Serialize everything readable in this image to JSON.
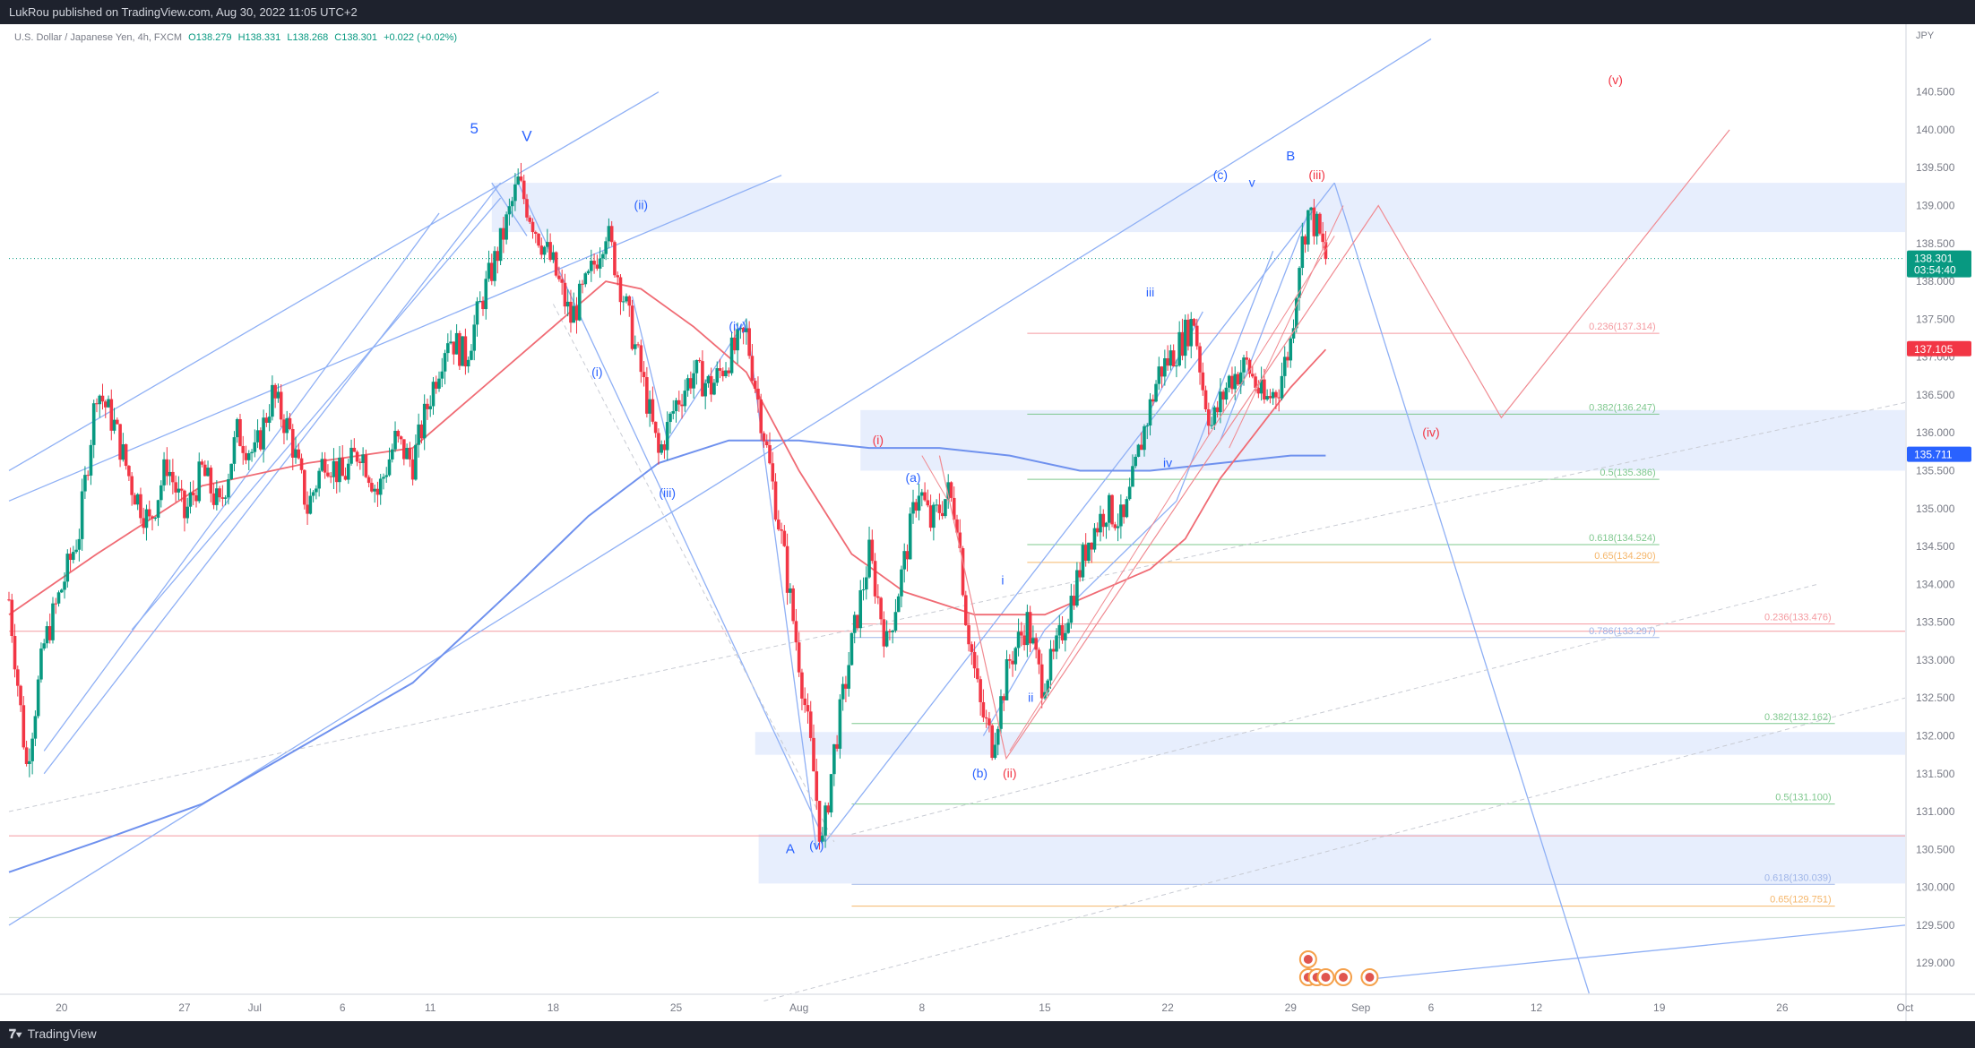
{
  "header": {
    "published": "LukRou published on TradingView.com, Aug 30, 2022 11:05 UTC+2"
  },
  "footer": {
    "brand": "TradingView",
    "brand_icon": "tradingview-logo-icon"
  },
  "colors": {
    "up": "#089981",
    "down": "#f23645",
    "blue": "#2962ff",
    "zone": "#e3ebfd",
    "ma_red": "#f06b74",
    "ma_blue": "#6f91ee",
    "channel": "#8fb0f5",
    "fib_red": "#f49aa0",
    "fib_green": "#7fc88e",
    "fib_orange": "#f5b66a"
  },
  "chart_data": {
    "type": "candlestick",
    "legend": {
      "symbol": "U.S. Dollar / Japanese Yen, 4h, FXCM",
      "open": "O138.279",
      "high": "H138.331",
      "low": "L138.268",
      "close": "C138.301",
      "change": "+0.022 (+0.02%)"
    },
    "price_axis": {
      "currency": "JPY",
      "range": [
        128.6,
        141.3
      ],
      "ticks": [
        "140.500",
        "140.000",
        "139.500",
        "139.000",
        "138.500",
        "138.000",
        "137.500",
        "137.000",
        "136.500",
        "136.000",
        "135.500",
        "135.000",
        "134.500",
        "134.000",
        "133.500",
        "133.000",
        "132.500",
        "132.000",
        "131.500",
        "131.000",
        "130.500",
        "130.000",
        "129.500",
        "129.000"
      ]
    },
    "time_axis": {
      "ticks": [
        {
          "label": "20",
          "d": 0
        },
        {
          "label": "27",
          "d": 7
        },
        {
          "label": "Jul",
          "d": 11
        },
        {
          "label": "6",
          "d": 16
        },
        {
          "label": "11",
          "d": 21
        },
        {
          "label": "18",
          "d": 28
        },
        {
          "label": "25",
          "d": 35
        },
        {
          "label": "Aug",
          "d": 42
        },
        {
          "label": "8",
          "d": 49
        },
        {
          "label": "15",
          "d": 56
        },
        {
          "label": "22",
          "d": 63
        },
        {
          "label": "29",
          "d": 70
        },
        {
          "label": "Sep",
          "d": 74
        },
        {
          "label": "6",
          "d": 78
        },
        {
          "label": "12",
          "d": 84
        },
        {
          "label": "19",
          "d": 91
        },
        {
          "label": "26",
          "d": 98
        },
        {
          "label": "Oct",
          "d": 105
        }
      ]
    },
    "price_badges": [
      {
        "label": "138.301",
        "sub": "03:54:40",
        "value": 138.301,
        "color": "#089981"
      },
      {
        "label": "137.105",
        "value": 137.105,
        "color": "#f23645"
      },
      {
        "label": "135.711",
        "value": 135.711,
        "color": "#2962ff"
      }
    ],
    "ohlc_path": [
      {
        "d": -3,
        "p": 133.8
      },
      {
        "d": -2,
        "p": 131.6
      },
      {
        "d": -1,
        "p": 133.2
      },
      {
        "d": 1,
        "p": 134.7
      },
      {
        "d": 2,
        "p": 136.6
      },
      {
        "d": 3,
        "p": 136.1
      },
      {
        "d": 4,
        "p": 135.3
      },
      {
        "d": 5,
        "p": 134.8
      },
      {
        "d": 6,
        "p": 135.6
      },
      {
        "d": 7,
        "p": 134.9
      },
      {
        "d": 8,
        "p": 135.5
      },
      {
        "d": 9,
        "p": 135.0
      },
      {
        "d": 10,
        "p": 136.0
      },
      {
        "d": 11,
        "p": 135.7
      },
      {
        "d": 12,
        "p": 136.5
      },
      {
        "d": 13,
        "p": 136.0
      },
      {
        "d": 14,
        "p": 135.0
      },
      {
        "d": 15,
        "p": 135.7
      },
      {
        "d": 16,
        "p": 135.4
      },
      {
        "d": 17,
        "p": 135.8
      },
      {
        "d": 18,
        "p": 135.2
      },
      {
        "d": 19,
        "p": 135.9
      },
      {
        "d": 20,
        "p": 135.6
      },
      {
        "d": 21,
        "p": 136.5
      },
      {
        "d": 22,
        "p": 137.3
      },
      {
        "d": 23,
        "p": 137.0
      },
      {
        "d": 24,
        "p": 137.8
      },
      {
        "d": 25,
        "p": 138.5
      },
      {
        "d": 26,
        "p": 139.3
      },
      {
        "d": 27,
        "p": 138.7
      },
      {
        "d": 28,
        "p": 138.2
      },
      {
        "d": 29,
        "p": 137.5
      },
      {
        "d": 30,
        "p": 138.0
      },
      {
        "d": 31,
        "p": 138.7
      },
      {
        "d": 32,
        "p": 137.8
      },
      {
        "d": 33,
        "p": 136.8
      },
      {
        "d": 34,
        "p": 135.7
      },
      {
        "d": 35,
        "p": 136.4
      },
      {
        "d": 36,
        "p": 136.8
      },
      {
        "d": 37,
        "p": 136.6
      },
      {
        "d": 38,
        "p": 137.0
      },
      {
        "d": 39,
        "p": 137.3
      },
      {
        "d": 40,
        "p": 136.0
      },
      {
        "d": 41,
        "p": 134.6
      },
      {
        "d": 42,
        "p": 133.0
      },
      {
        "d": 42.8,
        "p": 131.6
      },
      {
        "d": 43.3,
        "p": 130.5
      },
      {
        "d": 44,
        "p": 131.8
      },
      {
        "d": 45,
        "p": 133.2
      },
      {
        "d": 46,
        "p": 134.4
      },
      {
        "d": 47,
        "p": 133.2
      },
      {
        "d": 48,
        "p": 134.3
      },
      {
        "d": 48.8,
        "p": 135.3
      },
      {
        "d": 49.5,
        "p": 134.8
      },
      {
        "d": 50.5,
        "p": 135.2
      },
      {
        "d": 51,
        "p": 134.9
      },
      {
        "d": 51.5,
        "p": 133.6
      },
      {
        "d": 52.3,
        "p": 132.4
      },
      {
        "d": 53,
        "p": 131.9
      },
      {
        "d": 54,
        "p": 133.0
      },
      {
        "d": 55,
        "p": 133.5
      },
      {
        "d": 55.8,
        "p": 132.7
      },
      {
        "d": 56.5,
        "p": 133.0
      },
      {
        "d": 57.5,
        "p": 133.8
      },
      {
        "d": 58.5,
        "p": 134.6
      },
      {
        "d": 59.5,
        "p": 135.0
      },
      {
        "d": 60.5,
        "p": 134.8
      },
      {
        "d": 61.5,
        "p": 135.9
      },
      {
        "d": 62.5,
        "p": 136.8
      },
      {
        "d": 63.5,
        "p": 137.1
      },
      {
        "d": 64.5,
        "p": 137.5
      },
      {
        "d": 65,
        "p": 136.6
      },
      {
        "d": 65.5,
        "p": 136.1
      },
      {
        "d": 66.5,
        "p": 136.7
      },
      {
        "d": 67.5,
        "p": 136.9
      },
      {
        "d": 68.5,
        "p": 136.4
      },
      {
        "d": 69.3,
        "p": 136.6
      },
      {
        "d": 70,
        "p": 137.2
      },
      {
        "d": 70.5,
        "p": 138.3
      },
      {
        "d": 71,
        "p": 138.9
      },
      {
        "d": 71.5,
        "p": 138.7
      },
      {
        "d": 72,
        "p": 138.3
      }
    ],
    "ma_red": [
      {
        "d": -3,
        "p": 133.6
      },
      {
        "d": 2,
        "p": 134.4
      },
      {
        "d": 8,
        "p": 135.3
      },
      {
        "d": 14,
        "p": 135.6
      },
      {
        "d": 20,
        "p": 135.8
      },
      {
        "d": 24,
        "p": 136.6
      },
      {
        "d": 28,
        "p": 137.4
      },
      {
        "d": 31,
        "p": 138.0
      },
      {
        "d": 33,
        "p": 137.9
      },
      {
        "d": 36,
        "p": 137.4
      },
      {
        "d": 39,
        "p": 136.8
      },
      {
        "d": 42,
        "p": 135.5
      },
      {
        "d": 45,
        "p": 134.4
      },
      {
        "d": 48,
        "p": 133.9
      },
      {
        "d": 52,
        "p": 133.6
      },
      {
        "d": 56,
        "p": 133.6
      },
      {
        "d": 59,
        "p": 133.9
      },
      {
        "d": 62,
        "p": 134.2
      },
      {
        "d": 64,
        "p": 134.6
      },
      {
        "d": 66,
        "p": 135.4
      },
      {
        "d": 68,
        "p": 136.0
      },
      {
        "d": 70,
        "p": 136.6
      },
      {
        "d": 72,
        "p": 137.1
      }
    ],
    "ma_blue": [
      {
        "d": -3,
        "p": 130.2
      },
      {
        "d": 2,
        "p": 130.6
      },
      {
        "d": 8,
        "p": 131.1
      },
      {
        "d": 14,
        "p": 131.9
      },
      {
        "d": 20,
        "p": 132.7
      },
      {
        "d": 26,
        "p": 134.0
      },
      {
        "d": 30,
        "p": 134.9
      },
      {
        "d": 34,
        "p": 135.6
      },
      {
        "d": 38,
        "p": 135.9
      },
      {
        "d": 42,
        "p": 135.9
      },
      {
        "d": 46,
        "p": 135.8
      },
      {
        "d": 50,
        "p": 135.8
      },
      {
        "d": 54,
        "p": 135.7
      },
      {
        "d": 58,
        "p": 135.5
      },
      {
        "d": 62,
        "p": 135.5
      },
      {
        "d": 66,
        "p": 135.6
      },
      {
        "d": 70,
        "p": 135.7
      },
      {
        "d": 72,
        "p": 135.7
      }
    ],
    "zones": [
      {
        "d1": 24.5,
        "d2": 105,
        "top": 139.3,
        "bot": 138.65
      },
      {
        "d1": 45.5,
        "d2": 105,
        "top": 136.3,
        "bot": 135.5
      },
      {
        "d1": 39.5,
        "d2": 105,
        "top": 132.05,
        "bot": 131.75
      },
      {
        "d1": 39.7,
        "d2": 105,
        "top": 130.7,
        "bot": 130.05
      }
    ],
    "fib_levels": [
      {
        "label": "0.236(137.314)",
        "price": 137.314,
        "color": "#f49aa0",
        "d1": 55,
        "d2": 91
      },
      {
        "label": "0.382(136.247)",
        "price": 136.247,
        "color": "#7fc88e",
        "d1": 55,
        "d2": 91
      },
      {
        "label": "0.5(135.386)",
        "price": 135.386,
        "color": "#7fc88e",
        "d1": 55,
        "d2": 91
      },
      {
        "label": "0.618(134.524)",
        "price": 134.524,
        "color": "#7fc88e",
        "d1": 55,
        "d2": 91
      },
      {
        "label": "0.65(134.290)",
        "price": 134.29,
        "color": "#f5b66a",
        "d1": 55,
        "d2": 91
      },
      {
        "label": "0.786(133.297)",
        "price": 133.297,
        "color": "#9fb5e8",
        "d1": 45,
        "d2": 91
      },
      {
        "label": "0.236(133.476)",
        "price": 133.476,
        "color": "#f49aa0",
        "d1": 45,
        "d2": 101
      },
      {
        "label": "0.382(132.162)",
        "price": 132.162,
        "color": "#7fc88e",
        "d1": 45,
        "d2": 101
      },
      {
        "label": "0.5(131.100)",
        "price": 131.1,
        "color": "#7fc88e",
        "d1": 45,
        "d2": 101
      },
      {
        "label": "0.618(130.039)",
        "price": 130.039,
        "color": "#9fb5e8",
        "d1": 45,
        "d2": 101
      },
      {
        "label": "0.65(129.751)",
        "price": 129.751,
        "color": "#f5b66a",
        "d1": 45,
        "d2": 101
      }
    ],
    "hlines": [
      {
        "price": 133.38,
        "color": "#f49aa0"
      },
      {
        "price": 130.68,
        "color": "#f49aa0"
      },
      {
        "price": 129.6,
        "color": "#c9dccc"
      }
    ],
    "dotted_price": 138.301,
    "channel_lines": [
      {
        "a": [
          -3,
          135.5
        ],
        "b": [
          34,
          140.5
        ]
      },
      {
        "a": [
          -3,
          135.1
        ],
        "b": [
          41,
          139.4
        ]
      },
      {
        "a": [
          -3,
          129.5
        ],
        "b": [
          78,
          141.2
        ]
      },
      {
        "a": [
          -1,
          131.5
        ],
        "b": [
          25,
          139.3
        ]
      },
      {
        "a": [
          -1,
          131.8
        ],
        "b": [
          21.5,
          138.9
        ]
      },
      {
        "a": [
          4,
          133.4
        ],
        "b": [
          25,
          139.1
        ]
      },
      {
        "a": [
          26,
          139.3
        ],
        "b": [
          43.5,
          130.6
        ]
      },
      {
        "a": [
          43.5,
          130.6
        ],
        "b": [
          72.5,
          139.3
        ]
      },
      {
        "a": [
          72.5,
          139.3
        ],
        "b": [
          87,
          128.6
        ]
      },
      {
        "a": [
          24.5,
          139.3
        ],
        "b": [
          26.5,
          138.6
        ]
      },
      {
        "a": [
          75,
          128.8
        ],
        "b": [
          105,
          129.5
        ]
      },
      {
        "a": [
          32.5,
          137.8
        ],
        "b": [
          34.5,
          135.9
        ]
      },
      {
        "a": [
          34.5,
          135.9
        ],
        "b": [
          39,
          137.5
        ]
      },
      {
        "a": [
          39,
          137.5
        ],
        "b": [
          43,
          130.5
        ]
      },
      {
        "a": [
          52.5,
          132.0
        ],
        "b": [
          56,
          133.4
        ]
      },
      {
        "a": [
          56,
          133.4
        ],
        "b": [
          63.5,
          135.1
        ]
      },
      {
        "a": [
          63.5,
          135.1
        ],
        "b": [
          69,
          138.4
        ]
      },
      {
        "a": [
          62,
          136.3
        ],
        "b": [
          65,
          137.6
        ]
      },
      {
        "a": [
          66,
          135.9
        ],
        "b": [
          71,
          138.9
        ]
      }
    ],
    "dashed_lines": [
      {
        "a": [
          -3,
          131.0
        ],
        "b": [
          105,
          136.4
        ]
      },
      {
        "a": [
          40,
          128.5
        ],
        "b": [
          105,
          132.5
        ]
      },
      {
        "a": [
          28,
          137.7
        ],
        "b": [
          44,
          130.6
        ]
      },
      {
        "a": [
          45,
          130.7
        ],
        "b": [
          100,
          134.0
        ]
      }
    ],
    "red_projection": [
      {
        "d": 50,
        "p": 135.7
      },
      {
        "d": 53.8,
        "p": 131.7
      },
      {
        "d": 75,
        "p": 139.0
      },
      {
        "d": 82,
        "p": 136.2
      },
      {
        "d": 95,
        "p": 140.0
      }
    ],
    "red_thin_lines": [
      {
        "a": [
          49,
          135.7
        ],
        "b": [
          50.5,
          135.1
        ]
      },
      {
        "a": [
          54,
          131.8
        ],
        "b": [
          72.5,
          138.6
        ]
      },
      {
        "a": [
          66.5,
          135.8
        ],
        "b": [
          73,
          139.0
        ]
      }
    ],
    "wave_labels": [
      {
        "text": "5",
        "d": 23.5,
        "p": 139.95,
        "color": "#2962ff",
        "size": 17
      },
      {
        "text": "V",
        "d": 26.5,
        "p": 139.85,
        "color": "#2962ff",
        "size": 17
      },
      {
        "text": "(ii)",
        "d": 33,
        "p": 138.95,
        "color": "#2962ff",
        "size": 14
      },
      {
        "text": "(i)",
        "d": 30.5,
        "p": 136.75,
        "color": "#2962ff",
        "size": 14
      },
      {
        "text": "(iv)",
        "d": 38.5,
        "p": 137.35,
        "color": "#2962ff",
        "size": 14
      },
      {
        "text": "(iii)",
        "d": 34.5,
        "p": 135.15,
        "color": "#2962ff",
        "size": 14
      },
      {
        "text": "A",
        "d": 41.5,
        "p": 130.45,
        "color": "#2962ff",
        "size": 15
      },
      {
        "text": "(v)",
        "d": 43,
        "p": 130.5,
        "color": "#2962ff",
        "size": 14
      },
      {
        "text": "(i)",
        "d": 46.5,
        "p": 135.85,
        "color": "#f23645",
        "size": 14
      },
      {
        "text": "(a)",
        "d": 48.5,
        "p": 135.35,
        "color": "#2962ff",
        "size": 14
      },
      {
        "text": "(b)",
        "d": 52.3,
        "p": 131.45,
        "color": "#2962ff",
        "size": 14
      },
      {
        "text": "(ii)",
        "d": 54,
        "p": 131.45,
        "color": "#f23645",
        "size": 14
      },
      {
        "text": "i",
        "d": 53.6,
        "p": 134.0,
        "color": "#2962ff",
        "size": 14
      },
      {
        "text": "ii",
        "d": 55.2,
        "p": 132.45,
        "color": "#2962ff",
        "size": 14
      },
      {
        "text": "iii",
        "d": 62,
        "p": 137.8,
        "color": "#2962ff",
        "size": 14
      },
      {
        "text": "iv",
        "d": 63,
        "p": 135.55,
        "color": "#2962ff",
        "size": 14
      },
      {
        "text": "(c)",
        "d": 66,
        "p": 139.35,
        "color": "#2962ff",
        "size": 14
      },
      {
        "text": "v",
        "d": 67.8,
        "p": 139.25,
        "color": "#2962ff",
        "size": 14
      },
      {
        "text": "B",
        "d": 70,
        "p": 139.6,
        "color": "#2962ff",
        "size": 15
      },
      {
        "text": "(iii)",
        "d": 71.5,
        "p": 139.35,
        "color": "#f23645",
        "size": 14
      },
      {
        "text": "(v)",
        "d": 88.5,
        "p": 140.6,
        "color": "#f23645",
        "size": 14
      },
      {
        "text": "(iv)",
        "d": 78,
        "p": 135.95,
        "color": "#f23645",
        "size": 14
      }
    ],
    "event_markers": {
      "d": [
        71,
        71.5,
        72,
        73,
        74.5
      ],
      "d_top": 71
    }
  }
}
